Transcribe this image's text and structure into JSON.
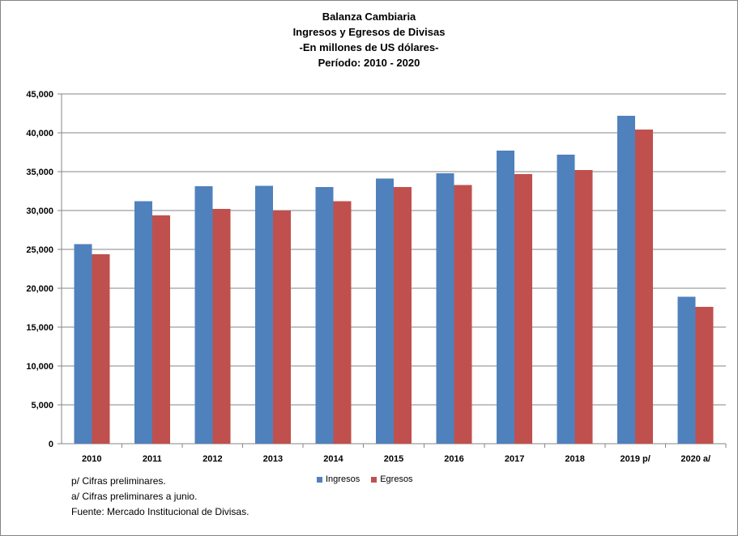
{
  "chart_data": {
    "type": "bar",
    "title": [
      "Balanza Cambiaria",
      "Ingresos y Egresos de Divisas",
      "-En millones de US dólares-",
      "Período: 2010 - 2020"
    ],
    "categories": [
      "2010",
      "2011",
      "2012",
      "2013",
      "2014",
      "2015",
      "2016",
      "2017",
      "2018",
      "2019 p/",
      "2020 a/"
    ],
    "series": [
      {
        "name": "Ingresos",
        "color": "#4F81BD",
        "values": [
          25700,
          31200,
          33100,
          33200,
          33000,
          34100,
          34800,
          37700,
          37200,
          42200,
          18900
        ]
      },
      {
        "name": "Egresos",
        "color": "#C0504D",
        "values": [
          24400,
          29400,
          30200,
          30000,
          31200,
          33000,
          33300,
          34700,
          35200,
          40400,
          17600
        ]
      }
    ],
    "ylim": [
      0,
      45000
    ],
    "yticks": [
      0,
      5000,
      10000,
      15000,
      20000,
      25000,
      30000,
      35000,
      40000,
      45000
    ],
    "ytick_labels": [
      "0",
      "5,000",
      "10,000",
      "15,000",
      "20,000",
      "25,000",
      "30,000",
      "35,000",
      "40,000",
      "45,000"
    ],
    "grid": true,
    "legend_position": "bottom"
  },
  "notes": [
    "p/ Cifras preliminares.",
    "a/ Cifras preliminares a junio.",
    "Fuente:  Mercado Institucional de Divisas."
  ],
  "colors": {
    "grid": "#868686",
    "axis": "#868686"
  }
}
